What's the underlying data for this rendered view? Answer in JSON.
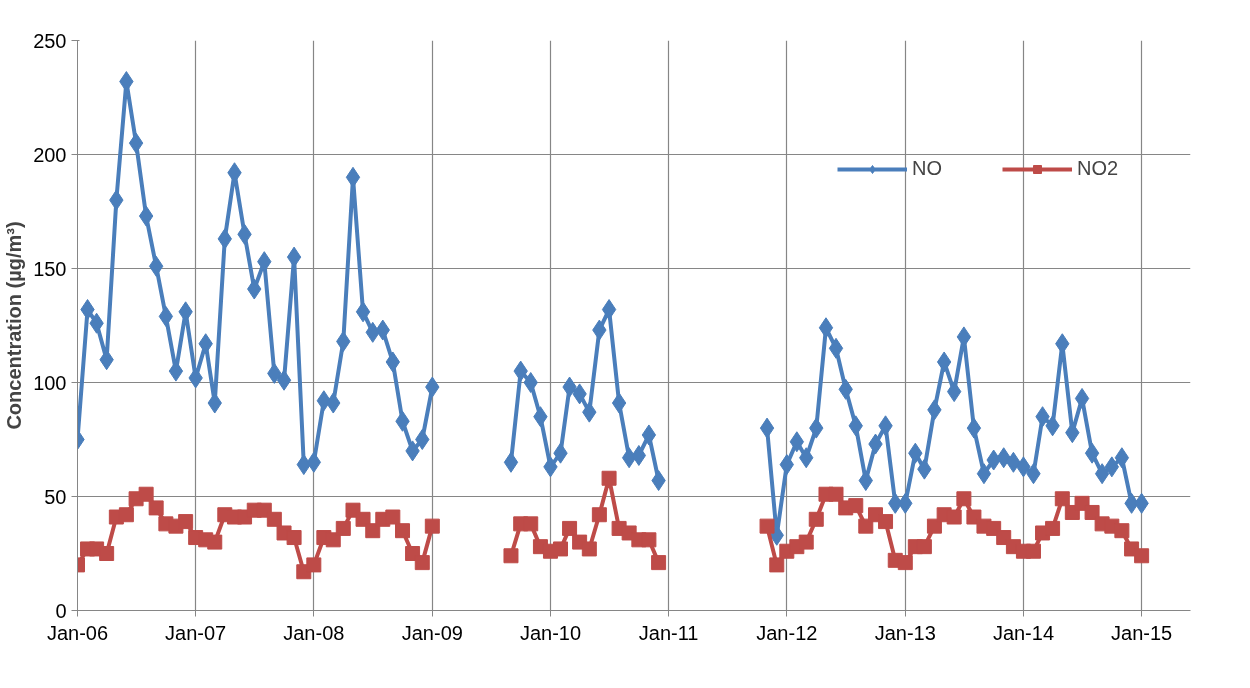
{
  "chart_data": {
    "type": "line",
    "ylabel": "Concentration (µg/m³)",
    "x": [
      "2006-01",
      "2006-02",
      "2006-03",
      "2006-04",
      "2006-05",
      "2006-06",
      "2006-07",
      "2006-08",
      "2006-09",
      "2006-10",
      "2006-11",
      "2006-12",
      "2007-01",
      "2007-02",
      "2007-03",
      "2007-04",
      "2007-05",
      "2007-06",
      "2007-07",
      "2007-08",
      "2007-09",
      "2007-10",
      "2007-11",
      "2007-12",
      "2008-01",
      "2008-02",
      "2008-03",
      "2008-04",
      "2008-05",
      "2008-06",
      "2008-07",
      "2008-08",
      "2008-09",
      "2008-10",
      "2008-11",
      "2008-12",
      "2009-01",
      "2009-02",
      "2009-03",
      "2009-04",
      "2009-05",
      "2009-06",
      "2009-07",
      "2009-08",
      "2009-09",
      "2009-10",
      "2009-11",
      "2009-12",
      "2010-01",
      "2010-02",
      "2010-03",
      "2010-04",
      "2010-05",
      "2010-06",
      "2010-07",
      "2010-08",
      "2010-09",
      "2010-10",
      "2010-11",
      "2010-12",
      "2011-01",
      "2011-02",
      "2011-03",
      "2011-04",
      "2011-05",
      "2011-06",
      "2011-07",
      "2011-08",
      "2011-09",
      "2011-10",
      "2011-11",
      "2011-12",
      "2012-01",
      "2012-02",
      "2012-03",
      "2012-04",
      "2012-05",
      "2012-06",
      "2012-07",
      "2012-08",
      "2012-09",
      "2012-10",
      "2012-11",
      "2012-12",
      "2013-01",
      "2013-02",
      "2013-03",
      "2013-04",
      "2013-05",
      "2013-06",
      "2013-07",
      "2013-08",
      "2013-09",
      "2013-10",
      "2013-11",
      "2013-12",
      "2014-01",
      "2014-02",
      "2014-03",
      "2014-04",
      "2014-05",
      "2014-06",
      "2014-07",
      "2014-08",
      "2014-09",
      "2014-10",
      "2014-11",
      "2014-12",
      "2015-01"
    ],
    "series": [
      {
        "name": "NO",
        "color": "#4a7ebb",
        "marker": "diamond",
        "values": [
          75,
          132,
          126,
          110,
          180,
          232,
          205,
          173,
          151,
          129,
          105,
          131,
          102,
          117,
          91,
          163,
          192,
          165,
          141,
          153,
          104,
          101,
          155,
          64,
          65,
          92,
          91,
          118,
          190,
          131,
          122,
          123,
          109,
          83,
          70,
          75,
          98,
          null,
          null,
          null,
          null,
          null,
          null,
          null,
          65,
          105,
          100,
          85,
          63,
          69,
          98,
          95,
          87,
          123,
          132,
          91,
          67,
          68,
          77,
          57,
          null,
          null,
          null,
          null,
          null,
          null,
          null,
          null,
          null,
          null,
          80,
          33,
          64,
          74,
          67,
          80,
          124,
          115,
          97,
          81,
          57,
          73,
          81,
          47,
          47,
          69,
          62,
          88,
          109,
          96,
          120,
          80,
          60,
          66,
          67,
          65,
          63,
          60,
          85,
          81,
          117,
          78,
          93,
          69,
          60,
          63,
          67,
          47,
          47
        ]
      },
      {
        "name": "NO2",
        "color": "#be4b48",
        "marker": "square",
        "values": [
          20,
          27,
          27,
          25,
          41,
          42,
          49,
          51,
          45,
          38,
          37,
          39,
          32,
          31,
          30,
          42,
          41,
          41,
          44,
          44,
          40,
          34,
          32,
          17,
          20,
          32,
          31,
          36,
          44,
          40,
          35,
          40,
          41,
          35,
          25,
          21,
          37,
          null,
          null,
          null,
          null,
          null,
          null,
          null,
          24,
          38,
          38,
          28,
          26,
          27,
          36,
          30,
          27,
          42,
          58,
          36,
          34,
          31,
          31,
          21,
          null,
          null,
          null,
          null,
          null,
          null,
          null,
          null,
          null,
          null,
          37,
          20,
          26,
          28,
          30,
          40,
          51,
          51,
          45,
          46,
          37,
          42,
          39,
          22,
          21,
          28,
          28,
          37,
          42,
          41,
          49,
          41,
          37,
          36,
          32,
          28,
          26,
          26,
          34,
          36,
          49,
          43,
          47,
          43,
          38,
          37,
          35,
          27,
          24
        ]
      }
    ],
    "xlim": [
      "2006-01",
      "2015-06"
    ],
    "xticks": [
      {
        "value": "2006-01",
        "label": "Jan-06"
      },
      {
        "value": "2007-01",
        "label": "Jan-07"
      },
      {
        "value": "2008-01",
        "label": "Jan-08"
      },
      {
        "value": "2009-01",
        "label": "Jan-09"
      },
      {
        "value": "2010-01",
        "label": "Jan-10"
      },
      {
        "value": "2011-01",
        "label": "Jan-11"
      },
      {
        "value": "2012-01",
        "label": "Jan-12"
      },
      {
        "value": "2013-01",
        "label": "Jan-13"
      },
      {
        "value": "2014-01",
        "label": "Jan-14"
      },
      {
        "value": "2015-01",
        "label": "Jan-15"
      }
    ],
    "ylim": [
      0,
      250
    ],
    "yticks": [
      0,
      50,
      100,
      150,
      200,
      250
    ],
    "grid": true,
    "legend": "top right",
    "line_style": "solid"
  }
}
